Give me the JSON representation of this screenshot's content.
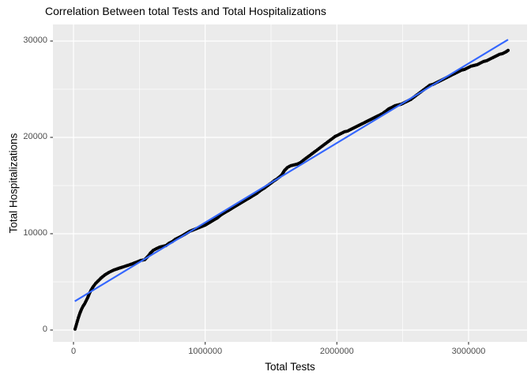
{
  "chart_data": {
    "type": "scatter",
    "title": "Correlation Between total Tests and Total Hospitalizations",
    "xlabel": "Total Tests",
    "ylabel": "Total Hospitalizations",
    "x_tick_values": [
      0,
      1000000,
      2000000,
      3000000
    ],
    "x_tick_labels": [
      "0",
      "1000000",
      "2000000",
      "3000000"
    ],
    "x_minor_values": [
      500000,
      1500000,
      2500000
    ],
    "y_tick_values": [
      0,
      10000,
      20000,
      30000
    ],
    "y_tick_labels": [
      "0",
      "10000",
      "20000",
      "30000"
    ],
    "y_minor_values": [
      5000,
      15000,
      25000
    ],
    "xlim": [
      -156000,
      3444000
    ],
    "ylim": [
      -1230,
      31720
    ],
    "grid": true,
    "legend": false,
    "trend_line": {
      "type": "linear",
      "x1": 10000,
      "y1": 2990,
      "x2": 3300000,
      "y2": 30150
    },
    "points": [
      [
        12000,
        100
      ],
      [
        24000,
        660
      ],
      [
        36000,
        1230
      ],
      [
        48000,
        1720
      ],
      [
        60000,
        2130
      ],
      [
        72000,
        2460
      ],
      [
        84000,
        2710
      ],
      [
        96000,
        3030
      ],
      [
        108000,
        3360
      ],
      [
        120000,
        3770
      ],
      [
        132000,
        4100
      ],
      [
        150000,
        4510
      ],
      [
        168000,
        4840
      ],
      [
        186000,
        5080
      ],
      [
        210000,
        5410
      ],
      [
        240000,
        5740
      ],
      [
        270000,
        5990
      ],
      [
        306000,
        6230
      ],
      [
        342000,
        6400
      ],
      [
        378000,
        6560
      ],
      [
        414000,
        6720
      ],
      [
        450000,
        6890
      ],
      [
        480000,
        7050
      ],
      [
        510000,
        7220
      ],
      [
        540000,
        7300
      ],
      [
        564000,
        7630
      ],
      [
        582000,
        7950
      ],
      [
        606000,
        8280
      ],
      [
        630000,
        8450
      ],
      [
        654000,
        8610
      ],
      [
        678000,
        8690
      ],
      [
        702000,
        8770
      ],
      [
        726000,
        9020
      ],
      [
        750000,
        9180
      ],
      [
        774000,
        9430
      ],
      [
        798000,
        9590
      ],
      [
        822000,
        9760
      ],
      [
        852000,
        10000
      ],
      [
        882000,
        10250
      ],
      [
        912000,
        10410
      ],
      [
        942000,
        10580
      ],
      [
        972000,
        10740
      ],
      [
        1002000,
        10910
      ],
      [
        1032000,
        11150
      ],
      [
        1062000,
        11400
      ],
      [
        1092000,
        11640
      ],
      [
        1122000,
        11970
      ],
      [
        1152000,
        12220
      ],
      [
        1182000,
        12460
      ],
      [
        1212000,
        12710
      ],
      [
        1242000,
        12960
      ],
      [
        1272000,
        13200
      ],
      [
        1302000,
        13450
      ],
      [
        1332000,
        13690
      ],
      [
        1362000,
        13940
      ],
      [
        1392000,
        14190
      ],
      [
        1422000,
        14510
      ],
      [
        1452000,
        14760
      ],
      [
        1476000,
        15010
      ],
      [
        1500000,
        15250
      ],
      [
        1524000,
        15500
      ],
      [
        1542000,
        15660
      ],
      [
        1566000,
        15910
      ],
      [
        1584000,
        16150
      ],
      [
        1602000,
        16560
      ],
      [
        1626000,
        16890
      ],
      [
        1650000,
        17060
      ],
      [
        1674000,
        17140
      ],
      [
        1698000,
        17220
      ],
      [
        1722000,
        17380
      ],
      [
        1746000,
        17630
      ],
      [
        1770000,
        17880
      ],
      [
        1794000,
        18120
      ],
      [
        1818000,
        18370
      ],
      [
        1842000,
        18610
      ],
      [
        1866000,
        18860
      ],
      [
        1890000,
        19110
      ],
      [
        1914000,
        19350
      ],
      [
        1938000,
        19600
      ],
      [
        1962000,
        19840
      ],
      [
        1986000,
        20090
      ],
      [
        2010000,
        20250
      ],
      [
        2034000,
        20420
      ],
      [
        2058000,
        20580
      ],
      [
        2082000,
        20660
      ],
      [
        2106000,
        20830
      ],
      [
        2130000,
        20990
      ],
      [
        2154000,
        21160
      ],
      [
        2178000,
        21320
      ],
      [
        2202000,
        21480
      ],
      [
        2226000,
        21650
      ],
      [
        2250000,
        21810
      ],
      [
        2274000,
        21980
      ],
      [
        2298000,
        22140
      ],
      [
        2322000,
        22300
      ],
      [
        2346000,
        22470
      ],
      [
        2370000,
        22710
      ],
      [
        2394000,
        22960
      ],
      [
        2418000,
        23120
      ],
      [
        2442000,
        23290
      ],
      [
        2466000,
        23370
      ],
      [
        2490000,
        23450
      ],
      [
        2514000,
        23620
      ],
      [
        2538000,
        23780
      ],
      [
        2562000,
        23940
      ],
      [
        2586000,
        24190
      ],
      [
        2610000,
        24440
      ],
      [
        2634000,
        24680
      ],
      [
        2658000,
        24930
      ],
      [
        2682000,
        25170
      ],
      [
        2706000,
        25420
      ],
      [
        2730000,
        25500
      ],
      [
        2754000,
        25670
      ],
      [
        2778000,
        25830
      ],
      [
        2802000,
        25990
      ],
      [
        2826000,
        26160
      ],
      [
        2850000,
        26320
      ],
      [
        2874000,
        26490
      ],
      [
        2898000,
        26650
      ],
      [
        2922000,
        26810
      ],
      [
        2946000,
        26980
      ],
      [
        2970000,
        27060
      ],
      [
        2994000,
        27220
      ],
      [
        3018000,
        27390
      ],
      [
        3042000,
        27470
      ],
      [
        3066000,
        27550
      ],
      [
        3090000,
        27720
      ],
      [
        3114000,
        27880
      ],
      [
        3138000,
        27960
      ],
      [
        3162000,
        28130
      ],
      [
        3186000,
        28290
      ],
      [
        3210000,
        28450
      ],
      [
        3234000,
        28620
      ],
      [
        3258000,
        28700
      ],
      [
        3282000,
        28860
      ],
      [
        3300000,
        29030
      ]
    ],
    "colors": {
      "panel_background": "#EBEBEB",
      "gridline": "#FFFFFF",
      "point": "#000000",
      "trend_line": "#3366FF",
      "tick_text": "#4D4D4D",
      "tick_mark": "#333333",
      "title_text": "#000000"
    }
  }
}
